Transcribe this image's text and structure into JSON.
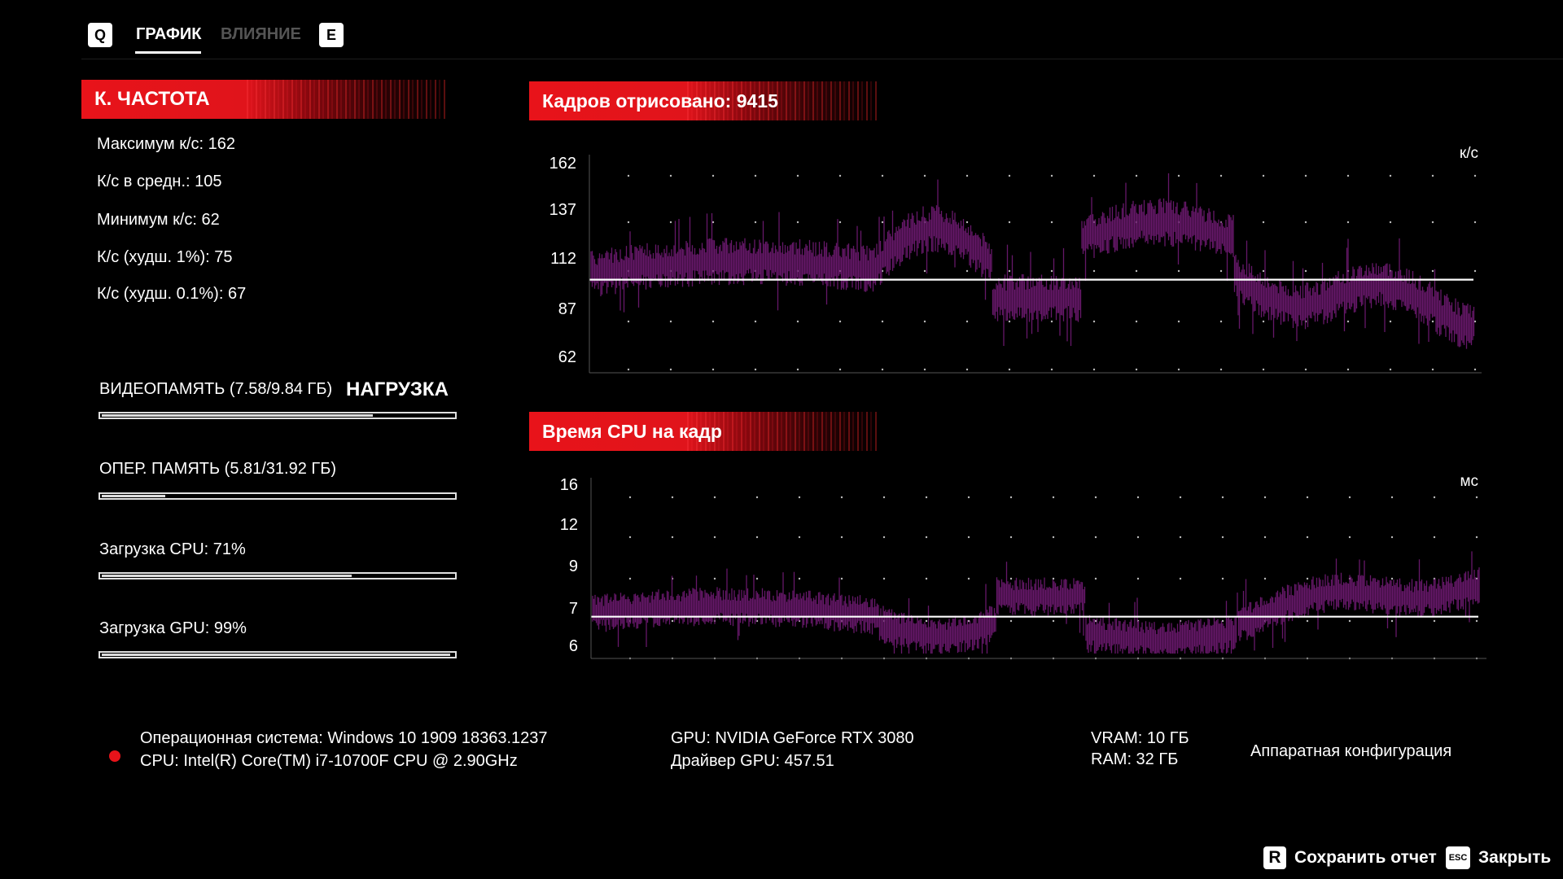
{
  "tabs": {
    "prev_key": "Q",
    "next_key": "E",
    "items": [
      {
        "label": "ГРАФИК",
        "active": true
      },
      {
        "label": "ВЛИЯНИЕ",
        "active": false
      }
    ]
  },
  "framerate": {
    "title": "К. ЧАСТОТА",
    "stats": [
      "Максимум к/с: 162",
      "К/с в средн.: 105",
      "Минимум к/с: 62",
      "К/с (худш. 1%): 75",
      "К/с (худш. 0.1%): 67"
    ]
  },
  "load": {
    "title": "НАГРУЗКА",
    "bars": [
      {
        "label": "ВИДЕОПАМЯТЬ (7.58/9.84 ГБ)",
        "fraction": 0.77
      },
      {
        "label": "ОПЕР. ПАМЯТЬ (5.81/31.92 ГБ)",
        "fraction": 0.18
      },
      {
        "label": "Загрузка CPU: 71%",
        "fraction": 0.71
      },
      {
        "label": "Загрузка GPU: 99%",
        "fraction": 0.99
      }
    ]
  },
  "fps_chart": {
    "title": "Кадров отрисовано: 9415",
    "unit": "к/с",
    "ticks": [
      "162",
      "137",
      "112",
      "87",
      "62"
    ],
    "ylim": [
      62,
      162
    ],
    "average": 105,
    "series_color": "#6b1a6e"
  },
  "cpu_chart": {
    "title": "Время CPU на кадр",
    "unit": "мс",
    "ticks": [
      "16",
      "12",
      "9",
      "7",
      "6"
    ],
    "ylim": [
      6,
      16
    ],
    "average": 8.2,
    "series_color": "#6b1a6e"
  },
  "hardware": {
    "os": "Операционная система: Windows 10 1909 18363.1237",
    "cpu": "CPU: Intel(R) Core(TM) i7-10700F CPU @ 2.90GHz",
    "gpu": "GPU: NVIDIA GeForce RTX 3080",
    "driver": "Драйвер GPU: 457.51",
    "vram": "VRAM: 10 ГБ",
    "ram": "RAM: 32 ГБ",
    "config": "Аппаратная конфигурация",
    "status_color": "#e8131a"
  },
  "footer": {
    "save_key": "R",
    "save_label": "Сохранить отчет",
    "close_key": "ESC",
    "close_label": "Закрыть"
  }
}
